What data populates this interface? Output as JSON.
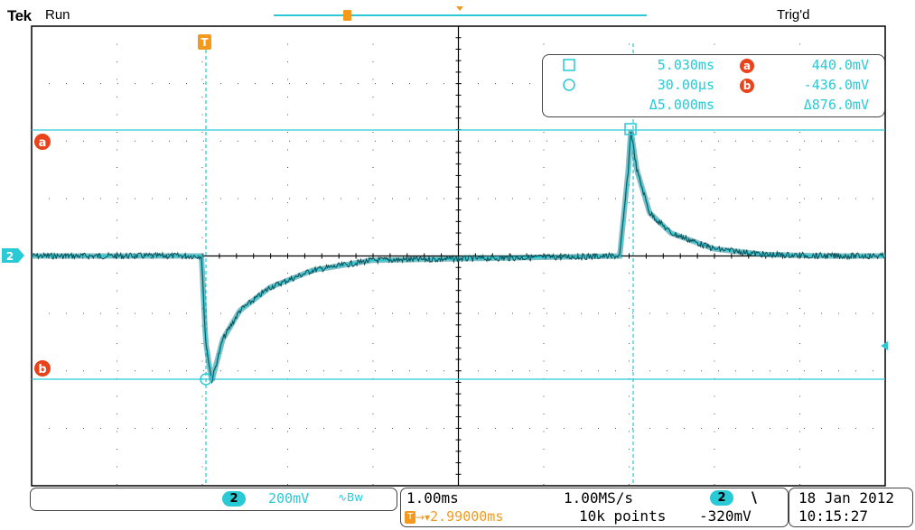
{
  "header": {
    "brand": "Tek",
    "state": "Run",
    "trigger_status": "Trig'd"
  },
  "markers": {
    "trigger": "T",
    "cursor_a": "a",
    "cursor_b": "b",
    "channel": "2"
  },
  "readout": {
    "square_time": "5.030ms",
    "circle_time": "30.00µs",
    "delta_time": "Δ5.000ms",
    "a_volt": "440.0mV",
    "b_volt": "-436.0mV",
    "delta_volt": "Δ876.0mV"
  },
  "channel_info": {
    "channel": "2",
    "scale": "200mV",
    "bw_symbol": "∿Bw"
  },
  "timebase": {
    "time_div": "1.00ms",
    "sample_rate": "1.00MS/s",
    "trigger_delay": "2.99000ms",
    "record_length": "10k points",
    "trigger_channel": "2",
    "trigger_slope": "\\",
    "trigger_level": "-320mV"
  },
  "datetime": {
    "date": "18 Jan  2012",
    "time": "10:15:27"
  },
  "colors": {
    "trace": "#29c9d6",
    "trigger": "#f39a1e",
    "cursor_badge": "#e8431b"
  },
  "chart_data": {
    "type": "line",
    "xlabel": "",
    "ylabel": "",
    "x_unit": "ms",
    "y_unit": "mV",
    "xlim": [
      -1.99,
      8.01
    ],
    "ylim": [
      -800,
      800
    ],
    "series": [
      {
        "x": [
          -1.99,
          0.0,
          0.05,
          0.12,
          0.25,
          0.45,
          0.8,
          1.3,
          2.0,
          4.9,
          5.0,
          5.03,
          5.1,
          5.25,
          5.5,
          6.0,
          6.6,
          7.3,
          8.01
        ],
        "y": [
          0,
          0,
          -300,
          -436,
          -290,
          -190,
          -110,
          -50,
          -15,
          0,
          300,
          440,
          300,
          150,
          80,
          25,
          5,
          0,
          0
        ]
      }
    ],
    "cursors": {
      "time": [
        0.03,
        5.03
      ],
      "voltage": [
        440,
        -436
      ]
    }
  }
}
